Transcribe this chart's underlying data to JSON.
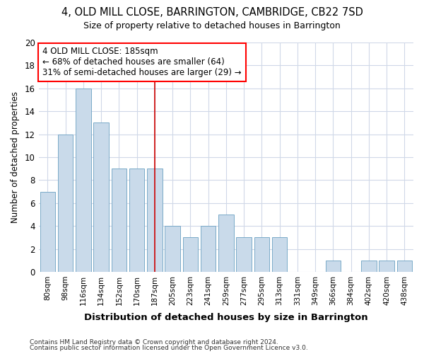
{
  "title": "4, OLD MILL CLOSE, BARRINGTON, CAMBRIDGE, CB22 7SD",
  "subtitle": "Size of property relative to detached houses in Barrington",
  "xlabel": "Distribution of detached houses by size in Barrington",
  "ylabel": "Number of detached properties",
  "bar_color": "#c9daea",
  "bar_edge_color": "#7aaac8",
  "vline_color": "#cc0000",
  "categories": [
    "80sqm",
    "98sqm",
    "116sqm",
    "134sqm",
    "152sqm",
    "170sqm",
    "187sqm",
    "205sqm",
    "223sqm",
    "241sqm",
    "259sqm",
    "277sqm",
    "295sqm",
    "313sqm",
    "331sqm",
    "349sqm",
    "366sqm",
    "384sqm",
    "402sqm",
    "420sqm",
    "438sqm"
  ],
  "values": [
    7,
    12,
    16,
    13,
    9,
    9,
    9,
    4,
    3,
    4,
    5,
    3,
    3,
    3,
    0,
    0,
    1,
    0,
    1,
    1,
    1
  ],
  "ylim": [
    0,
    20
  ],
  "yticks": [
    0,
    2,
    4,
    6,
    8,
    10,
    12,
    14,
    16,
    18,
    20
  ],
  "annotation_text": "4 OLD MILL CLOSE: 185sqm\n← 68% of detached houses are smaller (64)\n31% of semi-detached houses are larger (29) →",
  "annotation_bar_index": 6,
  "fig_bg_color": "#ffffff",
  "plot_bg_color": "#ffffff",
  "grid_color": "#d0d8e8",
  "footnote1": "Contains HM Land Registry data © Crown copyright and database right 2024.",
  "footnote2": "Contains public sector information licensed under the Open Government Licence v3.0."
}
